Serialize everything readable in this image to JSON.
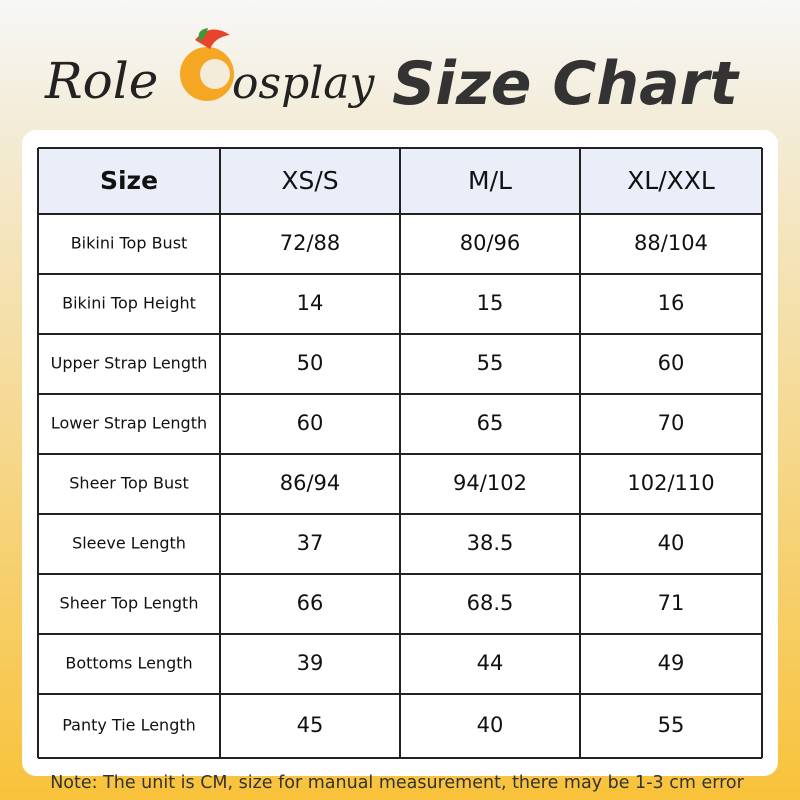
{
  "header": {
    "brand_left": "Role",
    "brand_right": "osplay",
    "title": "Size Chart"
  },
  "table": {
    "headers": [
      "Size",
      "XS/S",
      "M/L",
      "XL/XXL"
    ],
    "rows": [
      [
        "Bikini Top Bust",
        "72/88",
        "80/96",
        "88/104"
      ],
      [
        "Bikini Top Height",
        "14",
        "15",
        "16"
      ],
      [
        "Upper Strap Length",
        "50",
        "55",
        "60"
      ],
      [
        "Lower Strap Length",
        "60",
        "65",
        "70"
      ],
      [
        "Sheer Top Bust",
        "86/94",
        "94/102",
        "102/110"
      ],
      [
        "Sleeve Length",
        "37",
        "38.5",
        "40"
      ],
      [
        "Sheer Top Length",
        "66",
        "68.5",
        "71"
      ],
      [
        "Bottoms Length",
        "39",
        "44",
        "49"
      ],
      [
        "Panty Tie Length",
        "45",
        "40",
        "55"
      ]
    ]
  },
  "note": "Note: The unit is CM, size for manual measurement, there may be 1-3 cm error"
}
